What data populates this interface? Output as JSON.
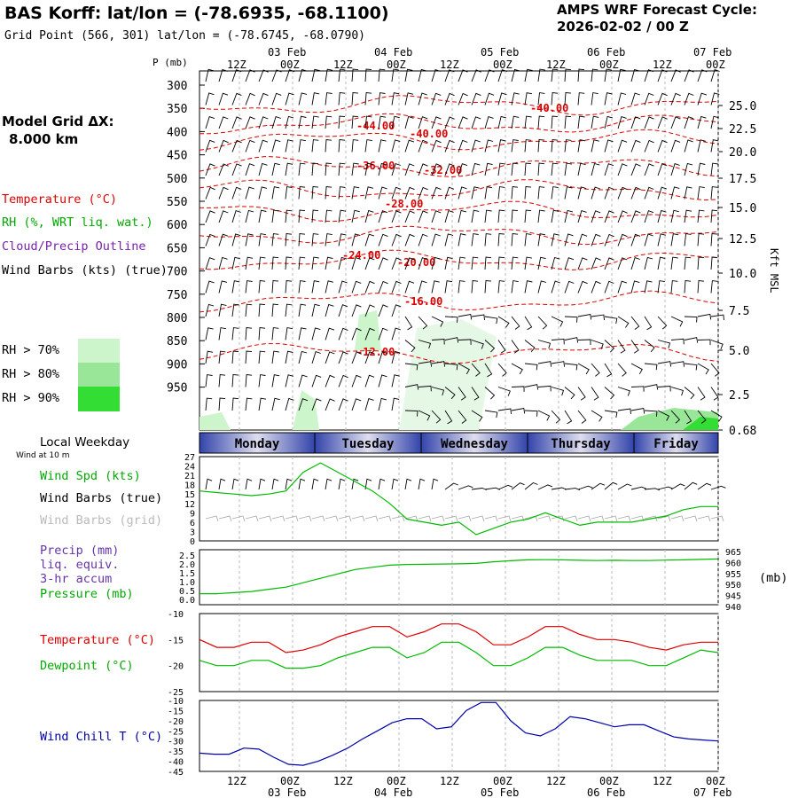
{
  "header": {
    "title": "BAS Korff:  lat/lon = (-78.6935, -68.1100)",
    "subtitle": "Grid Point (566, 301) lat/lon = (-78.6745, -68.0790)",
    "cycle_label": "AMPS WRF Forecast Cycle:",
    "cycle_value": "2026-02-02 / 00  Z"
  },
  "side_labels": {
    "grid_label": "Model Grid ΔX:",
    "grid_value": "8.000 km",
    "temperature": "Temperature (°C)",
    "rh": "RH (%, WRT liq. wat.)",
    "cloud": "Cloud/Precip Outline",
    "barbs": "Wind Barbs (kts) (true)",
    "rh_legend": [
      {
        "label": "RH > 70%",
        "color": "#ccf5cc"
      },
      {
        "label": "RH > 80%",
        "color": "#99e699"
      },
      {
        "label": "RH > 90%",
        "color": "#33dd33"
      }
    ],
    "local_weekday": "Local Weekday",
    "wind_10m": "Wind at 10 m",
    "wind_spd": "Wind Spd (kts)",
    "barbs_true": "Wind Barbs (true)",
    "barbs_grid": "Wind Barbs (grid)",
    "precip": "Precip (mm)",
    "liq": "liq. equiv.",
    "accum": "3-hr accum",
    "pressure": "Pressure (mb)",
    "temp2": "Temperature (°C)",
    "dewpoint": "Dewpoint (°C)",
    "windchill": "Wind Chill T (°C)",
    "pressure_unit": "(mb)",
    "kft": "Kft MSL"
  },
  "colors": {
    "temperature": "#dd0000",
    "rh_green": "#00bb00",
    "cloud": "#7722aa",
    "wind_gray": "#aaaaaa",
    "windchill": "#0000aa",
    "weekday_dark": "#3344aa",
    "weekday_light": "#ddddee"
  },
  "chart_data": [
    {
      "type": "line",
      "name": "cross-section",
      "p_label": "P (mb)",
      "pressure_ticks": [
        "300",
        "350",
        "400",
        "450",
        "500",
        "550",
        "600",
        "650",
        "700",
        "750",
        "800",
        "850",
        "900",
        "950"
      ],
      "kft_ticks": [
        "25.0",
        "22.5",
        "20.0",
        "17.5",
        "15.0",
        "12.5",
        "10.0",
        "7.5",
        "5.0",
        "2.5",
        "0.68"
      ],
      "time_top_hours": [
        "12Z",
        "00Z",
        "12Z",
        "00Z",
        "12Z",
        "00Z",
        "12Z",
        "00Z",
        "12Z",
        "00Z"
      ],
      "date_labels": [
        "03 Feb",
        "04 Feb",
        "05 Feb",
        "06 Feb",
        "07 Feb"
      ],
      "isotherm_labels": [
        "-40.00",
        "-44.00",
        "-40.00",
        "-36.00",
        "-32.00",
        "-28.00",
        "-24.00",
        "-20.00",
        "-16.00",
        "-12.00"
      ],
      "weekdays": [
        "Monday",
        "Tuesday",
        "Wednesday",
        "Thursday",
        "Friday"
      ]
    },
    {
      "type": "line",
      "name": "wind-speed",
      "yticks": [
        "27",
        "24",
        "21",
        "18",
        "15",
        "12",
        "9",
        "6",
        "3",
        "0"
      ],
      "ylim": [
        0,
        27
      ],
      "series": [
        {
          "name": "Wind Spd (kts)",
          "values": [
            16,
            15.5,
            15,
            14.5,
            15,
            16,
            22,
            25,
            22,
            19,
            16,
            12,
            7,
            6,
            5,
            6,
            2,
            4,
            6,
            7,
            9,
            7,
            5,
            6,
            6,
            6,
            7,
            8,
            10,
            11,
            11
          ]
        }
      ]
    },
    {
      "type": "line",
      "name": "precip-pressure",
      "yticks_left": [
        "2.5",
        "2.0",
        "1.5",
        "1.0",
        "0.5",
        "0.0"
      ],
      "yticks_right": [
        "965",
        "960",
        "955",
        "950",
        "945",
        "940"
      ],
      "series": [
        {
          "name": "Pressure (mb)",
          "values": [
            945,
            945,
            945.5,
            946,
            947,
            948,
            950,
            952,
            954,
            956,
            957,
            958,
            958.3,
            958.4,
            958.5,
            958.6,
            958.8,
            959.5,
            960,
            960.4,
            960.5,
            960.4,
            960.2,
            960.1,
            960.2,
            960.1,
            960.1,
            960.3,
            960.4,
            960.6,
            960.8
          ]
        }
      ]
    },
    {
      "type": "line",
      "name": "temperature-dewpoint",
      "ylim": [
        -25,
        -10
      ],
      "yticks": [
        "-10",
        "-15",
        "-20",
        "-25"
      ],
      "series": [
        {
          "name": "Temperature (°C)",
          "values": [
            -15,
            -16.5,
            -16.5,
            -15.5,
            -15.5,
            -17.5,
            -17,
            -16,
            -14.5,
            -13.5,
            -12.5,
            -12.5,
            -14.5,
            -13.5,
            -12,
            -12,
            -13.5,
            -16,
            -16,
            -14.5,
            -12.5,
            -12.5,
            -14,
            -15,
            -15,
            -15.5,
            -16.5,
            -17,
            -16,
            -15.5,
            -15.5
          ]
        },
        {
          "name": "Dewpoint (°C)",
          "values": [
            -19,
            -20,
            -20,
            -19,
            -19,
            -20.5,
            -20.5,
            -20,
            -18.5,
            -17.5,
            -16.5,
            -16.5,
            -18.5,
            -17.5,
            -15.5,
            -15.5,
            -17.5,
            -20,
            -20,
            -18.5,
            -16.5,
            -16.5,
            -18,
            -19,
            -19,
            -19,
            -20,
            -20,
            -18.5,
            -17,
            -17.5
          ]
        }
      ]
    },
    {
      "type": "line",
      "name": "wind-chill",
      "ylim": [
        -45,
        -10
      ],
      "yticks": [
        "-10",
        "-15",
        "-20",
        "-25",
        "-30",
        "-35",
        "-40",
        "-45"
      ],
      "series": [
        {
          "name": "Wind Chill T (°C)",
          "values": [
            -36,
            -36.5,
            -36.5,
            -33.5,
            -34,
            -38,
            -41.5,
            -42,
            -40,
            -37,
            -33.5,
            -29,
            -25,
            -21,
            -19,
            -19,
            -24,
            -23,
            -15,
            -11,
            -11,
            -20,
            -26,
            -27.5,
            -24,
            -18,
            -19,
            -21,
            -23,
            -22,
            -22,
            -25,
            -28,
            -29,
            -29.5,
            -30
          ]
        }
      ]
    }
  ],
  "bottom_axis": {
    "hours": [
      "12Z",
      "00Z",
      "12Z",
      "00Z",
      "12Z",
      "00Z",
      "12Z",
      "00Z",
      "12Z",
      "00Z"
    ],
    "dates": [
      "03 Feb",
      "04 Feb",
      "05 Feb",
      "06 Feb",
      "07 Feb"
    ]
  }
}
